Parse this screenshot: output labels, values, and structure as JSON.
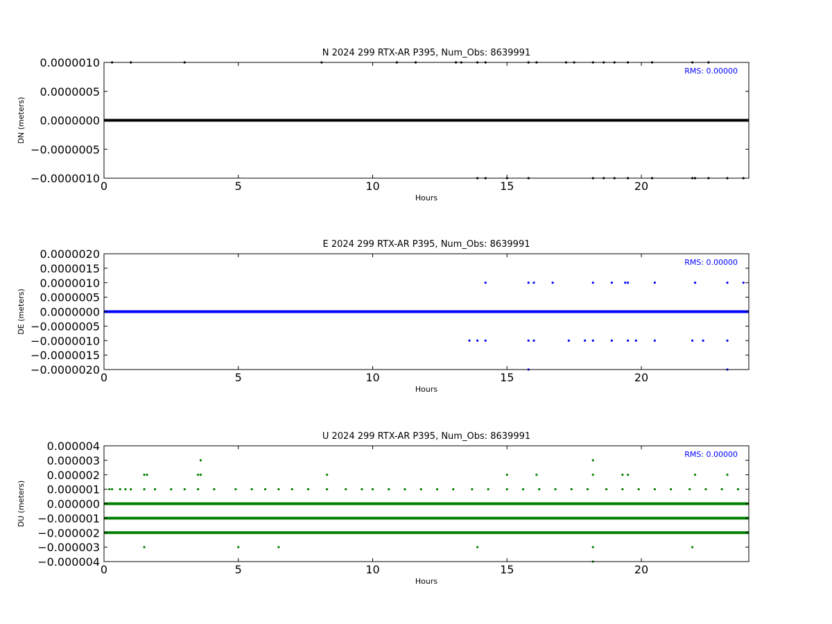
{
  "chart_data": [
    {
      "type": "scatter",
      "title": "N 2024 299 RTX-AR  P395, Num_Obs: 8639991",
      "xlabel": "Hours",
      "ylabel": "DN (meters)",
      "xlim": [
        0,
        24
      ],
      "ylim": [
        -1e-06,
        1e-06
      ],
      "xticks": [
        0,
        5,
        10,
        15,
        20
      ],
      "xtick_labels": [
        "0",
        "5",
        "10",
        "15",
        "20"
      ],
      "yticks": [
        1e-06,
        5e-07,
        0,
        -5e-07,
        -1e-06
      ],
      "ytick_labels": [
        "0.0000010",
        "0.0000005",
        "0.0000000",
        "−0.0000005",
        "−0.0000010"
      ],
      "annotation": "RMS:  0.00000",
      "color": "#000000",
      "bands": [
        {
          "y": 0,
          "x_start": 0,
          "x_end": 24
        }
      ],
      "series": [
        {
          "values": [
            {
              "x": 0.3,
              "y": 1e-06
            },
            {
              "x": 1.0,
              "y": 1e-06
            },
            {
              "x": 3.0,
              "y": 1e-06
            },
            {
              "x": 8.1,
              "y": 1e-06
            },
            {
              "x": 10.9,
              "y": 1e-06
            },
            {
              "x": 11.6,
              "y": 1e-06
            },
            {
              "x": 13.1,
              "y": 1e-06
            },
            {
              "x": 13.3,
              "y": 1e-06
            },
            {
              "x": 13.9,
              "y": 1e-06
            },
            {
              "x": 14.2,
              "y": 1e-06
            },
            {
              "x": 15.8,
              "y": 1e-06
            },
            {
              "x": 16.1,
              "y": 1e-06
            },
            {
              "x": 17.2,
              "y": 1e-06
            },
            {
              "x": 17.5,
              "y": 1e-06
            },
            {
              "x": 18.2,
              "y": 1e-06
            },
            {
              "x": 18.6,
              "y": 1e-06
            },
            {
              "x": 19.0,
              "y": 1e-06
            },
            {
              "x": 19.5,
              "y": 1e-06
            },
            {
              "x": 20.4,
              "y": 1e-06
            },
            {
              "x": 21.9,
              "y": 1e-06
            },
            {
              "x": 22.5,
              "y": 1e-06
            },
            {
              "x": 13.9,
              "y": -1e-06
            },
            {
              "x": 14.2,
              "y": -1e-06
            },
            {
              "x": 15.0,
              "y": -1e-06
            },
            {
              "x": 15.8,
              "y": -1e-06
            },
            {
              "x": 18.2,
              "y": -1e-06
            },
            {
              "x": 18.6,
              "y": -1e-06
            },
            {
              "x": 19.0,
              "y": -1e-06
            },
            {
              "x": 19.5,
              "y": -1e-06
            },
            {
              "x": 20.4,
              "y": -1e-06
            },
            {
              "x": 21.9,
              "y": -1e-06
            },
            {
              "x": 22.0,
              "y": -1e-06
            },
            {
              "x": 22.5,
              "y": -1e-06
            },
            {
              "x": 23.2,
              "y": -1e-06
            },
            {
              "x": 23.8,
              "y": -1e-06
            }
          ]
        }
      ]
    },
    {
      "type": "scatter",
      "title": "E 2024 299 RTX-AR  P395, Num_Obs: 8639991",
      "xlabel": "Hours",
      "ylabel": "DE (meters)",
      "xlim": [
        0,
        24
      ],
      "ylim": [
        -2e-06,
        2e-06
      ],
      "xticks": [
        0,
        5,
        10,
        15,
        20
      ],
      "xtick_labels": [
        "0",
        "5",
        "10",
        "15",
        "20"
      ],
      "yticks": [
        2e-06,
        1.5e-06,
        1e-06,
        5e-07,
        0,
        -5e-07,
        -1e-06,
        -1.5e-06,
        -2e-06
      ],
      "ytick_labels": [
        "0.0000020",
        "0.0000015",
        "0.0000010",
        "0.0000005",
        "0.0000000",
        "−0.0000005",
        "−0.0000010",
        "−0.0000015",
        "−0.0000020"
      ],
      "annotation": "RMS:  0.00000",
      "color": "#0000ff",
      "bands": [
        {
          "y": 0,
          "x_start": 0,
          "x_end": 24
        }
      ],
      "series": [
        {
          "values": [
            {
              "x": 14.2,
              "y": 1e-06
            },
            {
              "x": 15.8,
              "y": 1e-06
            },
            {
              "x": 16.0,
              "y": 1e-06
            },
            {
              "x": 16.7,
              "y": 1e-06
            },
            {
              "x": 18.2,
              "y": 1e-06
            },
            {
              "x": 18.9,
              "y": 1e-06
            },
            {
              "x": 19.4,
              "y": 1e-06
            },
            {
              "x": 19.5,
              "y": 1e-06
            },
            {
              "x": 20.5,
              "y": 1e-06
            },
            {
              "x": 22.0,
              "y": 1e-06
            },
            {
              "x": 23.2,
              "y": 1e-06
            },
            {
              "x": 23.8,
              "y": 1e-06
            },
            {
              "x": 13.6,
              "y": -1e-06
            },
            {
              "x": 13.9,
              "y": -1e-06
            },
            {
              "x": 14.2,
              "y": -1e-06
            },
            {
              "x": 15.8,
              "y": -1e-06
            },
            {
              "x": 16.0,
              "y": -1e-06
            },
            {
              "x": 17.3,
              "y": -1e-06
            },
            {
              "x": 17.9,
              "y": -1e-06
            },
            {
              "x": 18.2,
              "y": -1e-06
            },
            {
              "x": 18.9,
              "y": -1e-06
            },
            {
              "x": 19.5,
              "y": -1e-06
            },
            {
              "x": 19.8,
              "y": -1e-06
            },
            {
              "x": 20.5,
              "y": -1e-06
            },
            {
              "x": 21.9,
              "y": -1e-06
            },
            {
              "x": 22.3,
              "y": -1e-06
            },
            {
              "x": 23.2,
              "y": -1e-06
            },
            {
              "x": 15.8,
              "y": -2e-06
            },
            {
              "x": 23.2,
              "y": -2e-06
            }
          ]
        }
      ]
    },
    {
      "type": "scatter",
      "title": "U 2024 299 RTX-AR  P395, Num_Obs: 8639991",
      "xlabel": "Hours",
      "ylabel": "DU (meters)",
      "xlim": [
        0,
        24
      ],
      "ylim": [
        -4e-06,
        4e-06
      ],
      "xticks": [
        0,
        5,
        10,
        15,
        20
      ],
      "xtick_labels": [
        "0",
        "5",
        "10",
        "15",
        "20"
      ],
      "yticks": [
        4e-06,
        3e-06,
        2e-06,
        1e-06,
        0,
        -1e-06,
        -2e-06,
        -3e-06,
        -4e-06
      ],
      "ytick_labels": [
        "0.000004",
        "0.000003",
        "0.000002",
        "0.000001",
        "0.000000",
        "−0.000001",
        "−0.000002",
        "−0.000003",
        "−0.000004"
      ],
      "annotation": "RMS:  0.00000",
      "color": "#008000",
      "bands": [
        {
          "y": 0,
          "x_start": 0,
          "x_end": 24
        },
        {
          "y": -1e-06,
          "x_start": 0,
          "x_end": 24
        },
        {
          "y": -2e-06,
          "x_start": 0,
          "x_end": 24
        }
      ],
      "series": [
        {
          "values": [
            {
              "x": 3.6,
              "y": 3e-06
            },
            {
              "x": 18.2,
              "y": 3e-06
            },
            {
              "x": 1.5,
              "y": 2e-06
            },
            {
              "x": 1.6,
              "y": 2e-06
            },
            {
              "x": 3.5,
              "y": 2e-06
            },
            {
              "x": 3.6,
              "y": 2e-06
            },
            {
              "x": 8.3,
              "y": 2e-06
            },
            {
              "x": 15.0,
              "y": 2e-06
            },
            {
              "x": 16.1,
              "y": 2e-06
            },
            {
              "x": 18.2,
              "y": 2e-06
            },
            {
              "x": 19.3,
              "y": 2e-06
            },
            {
              "x": 19.5,
              "y": 2e-06
            },
            {
              "x": 22.0,
              "y": 2e-06
            },
            {
              "x": 23.2,
              "y": 2e-06
            },
            {
              "x": 0.2,
              "y": 1e-06
            },
            {
              "x": 0.3,
              "y": 1e-06
            },
            {
              "x": 0.6,
              "y": 1e-06
            },
            {
              "x": 0.8,
              "y": 1e-06
            },
            {
              "x": 1.0,
              "y": 1e-06
            },
            {
              "x": 1.5,
              "y": 1e-06
            },
            {
              "x": 1.9,
              "y": 1e-06
            },
            {
              "x": 2.5,
              "y": 1e-06
            },
            {
              "x": 3.0,
              "y": 1e-06
            },
            {
              "x": 3.5,
              "y": 1e-06
            },
            {
              "x": 4.1,
              "y": 1e-06
            },
            {
              "x": 4.9,
              "y": 1e-06
            },
            {
              "x": 5.5,
              "y": 1e-06
            },
            {
              "x": 6.0,
              "y": 1e-06
            },
            {
              "x": 6.5,
              "y": 1e-06
            },
            {
              "x": 7.0,
              "y": 1e-06
            },
            {
              "x": 7.6,
              "y": 1e-06
            },
            {
              "x": 8.3,
              "y": 1e-06
            },
            {
              "x": 9.0,
              "y": 1e-06
            },
            {
              "x": 9.6,
              "y": 1e-06
            },
            {
              "x": 10.0,
              "y": 1e-06
            },
            {
              "x": 10.6,
              "y": 1e-06
            },
            {
              "x": 11.2,
              "y": 1e-06
            },
            {
              "x": 11.8,
              "y": 1e-06
            },
            {
              "x": 12.4,
              "y": 1e-06
            },
            {
              "x": 13.0,
              "y": 1e-06
            },
            {
              "x": 13.7,
              "y": 1e-06
            },
            {
              "x": 14.3,
              "y": 1e-06
            },
            {
              "x": 15.0,
              "y": 1e-06
            },
            {
              "x": 15.6,
              "y": 1e-06
            },
            {
              "x": 16.2,
              "y": 1e-06
            },
            {
              "x": 16.8,
              "y": 1e-06
            },
            {
              "x": 17.4,
              "y": 1e-06
            },
            {
              "x": 18.0,
              "y": 1e-06
            },
            {
              "x": 18.7,
              "y": 1e-06
            },
            {
              "x": 19.3,
              "y": 1e-06
            },
            {
              "x": 19.9,
              "y": 1e-06
            },
            {
              "x": 20.5,
              "y": 1e-06
            },
            {
              "x": 21.1,
              "y": 1e-06
            },
            {
              "x": 21.8,
              "y": 1e-06
            },
            {
              "x": 22.4,
              "y": 1e-06
            },
            {
              "x": 23.0,
              "y": 1e-06
            },
            {
              "x": 23.6,
              "y": 1e-06
            },
            {
              "x": 1.5,
              "y": -3e-06
            },
            {
              "x": 5.0,
              "y": -3e-06
            },
            {
              "x": 6.5,
              "y": -3e-06
            },
            {
              "x": 13.9,
              "y": -3e-06
            },
            {
              "x": 18.2,
              "y": -3e-06
            },
            {
              "x": 21.9,
              "y": -3e-06
            },
            {
              "x": 18.2,
              "y": -4e-06
            }
          ]
        }
      ]
    }
  ]
}
